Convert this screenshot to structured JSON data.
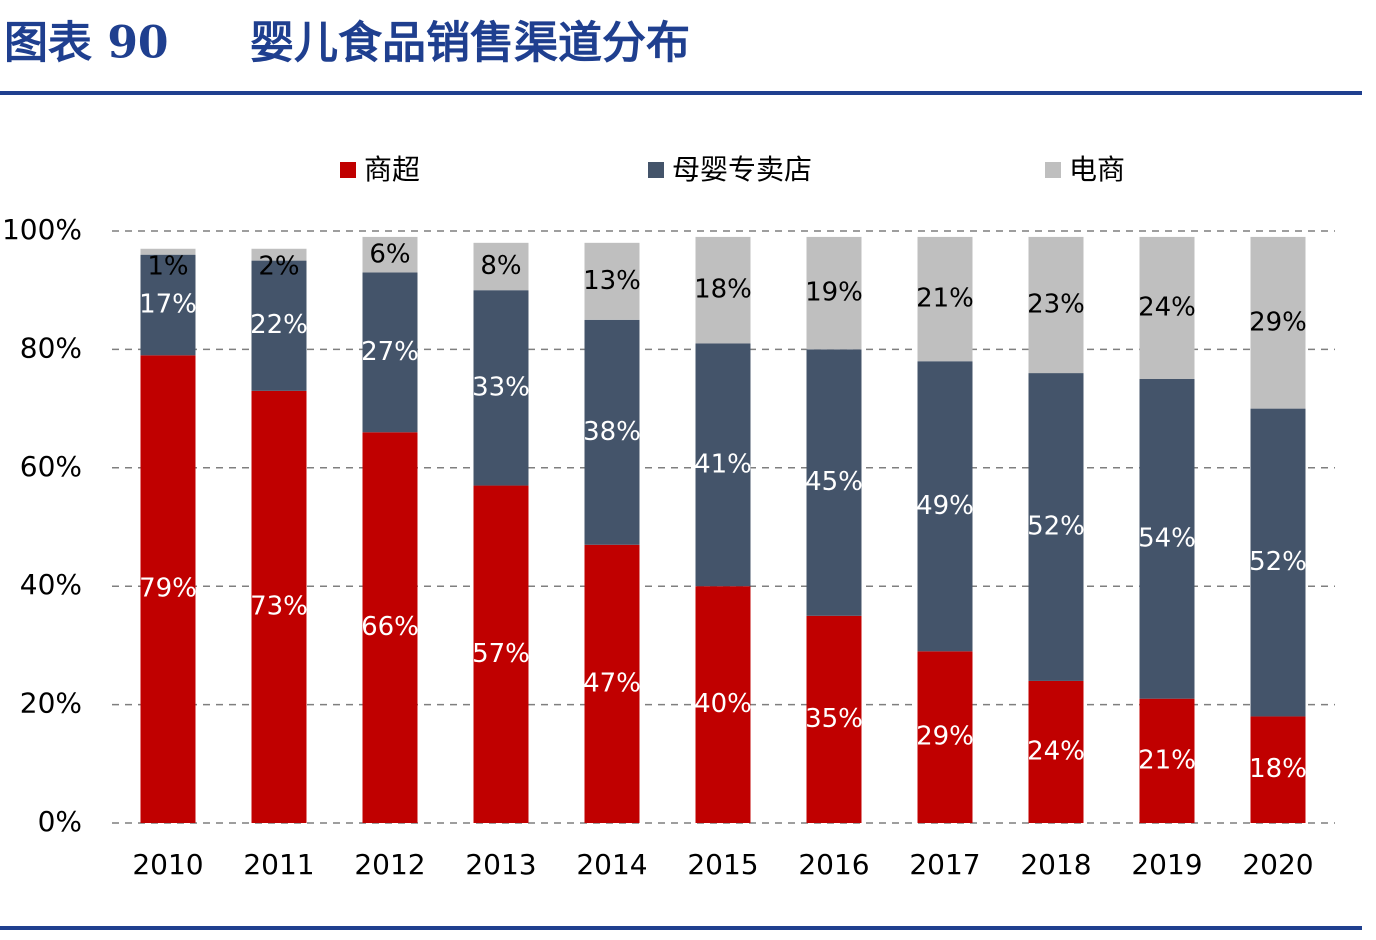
{
  "chart_data": {
    "type": "stacked_bar",
    "figure_label": "图表 90",
    "title": "婴儿食品销售渠道分布",
    "categories": [
      "2010",
      "2011",
      "2012",
      "2013",
      "2014",
      "2015",
      "2016",
      "2017",
      "2018",
      "2019",
      "2020"
    ],
    "series": [
      {
        "name": "商超",
        "color": "#c00000",
        "values": [
          79,
          73,
          66,
          57,
          47,
          40,
          35,
          29,
          24,
          21,
          18
        ],
        "value_labels": [
          "79%",
          "73%",
          "66%",
          "57%",
          "47%",
          "40%",
          "35%",
          "29%",
          "24%",
          "21%",
          "18%"
        ]
      },
      {
        "name": "母婴专卖店",
        "color": "#44546a",
        "values": [
          17,
          22,
          27,
          33,
          38,
          41,
          45,
          49,
          52,
          54,
          52
        ],
        "value_labels": [
          "17%",
          "22%",
          "27%",
          "33%",
          "38%",
          "41%",
          "45%",
          "49%",
          "52%",
          "54%",
          "52%"
        ]
      },
      {
        "name": "电商",
        "color": "#bfbfbf",
        "values": [
          1,
          2,
          6,
          8,
          13,
          18,
          19,
          21,
          23,
          24,
          29
        ],
        "value_labels": [
          "1%",
          "2%",
          "6%",
          "8%",
          "13%",
          "18%",
          "19%",
          "21%",
          "23%",
          "24%",
          "29%"
        ]
      }
    ],
    "ylim": [
      0,
      100
    ],
    "yticks": [
      {
        "value": 0,
        "label": "0%"
      },
      {
        "value": 20,
        "label": "20%"
      },
      {
        "value": 40,
        "label": "40%"
      },
      {
        "value": 60,
        "label": "60%"
      },
      {
        "value": 80,
        "label": "80%"
      },
      {
        "value": 100,
        "label": "100%"
      }
    ],
    "grid": true
  }
}
